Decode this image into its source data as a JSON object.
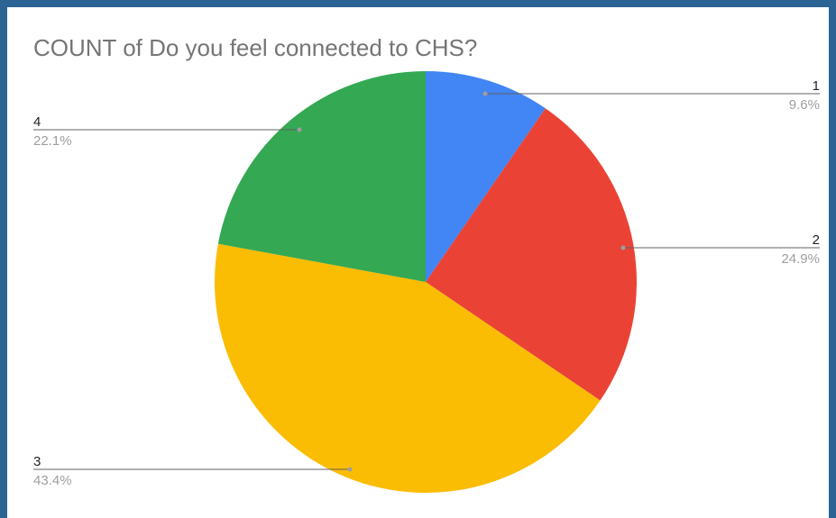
{
  "chart_data": {
    "type": "pie",
    "title": "COUNT of Do you feel connected to CHS?",
    "slices": [
      {
        "label": "1",
        "value": 9.6,
        "percent_label": "9.6%",
        "color": "#4285f4"
      },
      {
        "label": "2",
        "value": 24.9,
        "percent_label": "24.9%",
        "color": "#ea4335"
      },
      {
        "label": "3",
        "value": 43.4,
        "percent_label": "43.4%",
        "color": "#fbbc04"
      },
      {
        "label": "4",
        "value": 22.1,
        "percent_label": "22.1%",
        "color": "#34a853"
      }
    ],
    "start_angle": "12 o'clock",
    "direction": "clockwise",
    "legend": "none"
  }
}
